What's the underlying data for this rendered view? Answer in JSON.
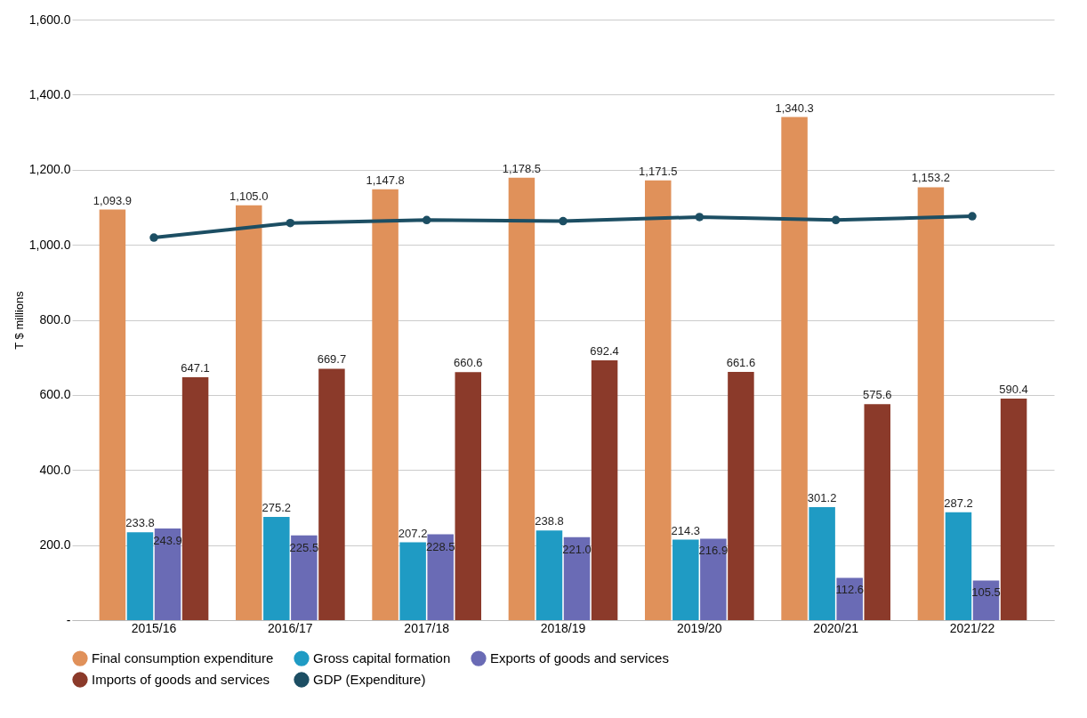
{
  "chart_data": {
    "type": "bar",
    "ylabel": "T $ millions",
    "categories": [
      "2015/16",
      "2016/17",
      "2017/18",
      "2018/19",
      "2019/20",
      "2020/21",
      "2021/22"
    ],
    "series": [
      {
        "name": "Final consumption expenditure",
        "color": "#e0915a",
        "values": [
          1093.9,
          1105.0,
          1147.8,
          1178.5,
          1171.5,
          1340.3,
          1153.2
        ],
        "value_labels": [
          "1,093.9",
          "1,105.0",
          "1,147.8",
          "1,178.5",
          "1,171.5",
          "1,340.3",
          "1,153.2"
        ]
      },
      {
        "name": "Gross capital formation",
        "color": "#1f9bc4",
        "values": [
          233.8,
          275.2,
          207.2,
          238.8,
          214.3,
          301.2,
          287.2
        ],
        "value_labels": [
          "233.8",
          "275.2",
          "207.2",
          "238.8",
          "214.3",
          "301.2",
          "287.2"
        ]
      },
      {
        "name": "Exports of goods and services",
        "color": "#6a6bb5",
        "values": [
          243.9,
          225.5,
          228.5,
          221.0,
          216.9,
          112.6,
          105.5
        ],
        "value_labels": [
          "243.9",
          "225.5",
          "228.5",
          "221.0",
          "216.9",
          "112.6",
          "105.5"
        ]
      },
      {
        "name": "Imports of goods and services",
        "color": "#8b3a2a",
        "values": [
          647.1,
          669.7,
          660.6,
          692.4,
          661.6,
          575.6,
          590.4
        ],
        "value_labels": [
          "647.1",
          "669.7",
          "660.6",
          "692.4",
          "661.6",
          "575.6",
          "590.4"
        ]
      },
      {
        "name": "GDP (Expenditure)",
        "type": "line",
        "color": "#1c4e63",
        "marker": "circle",
        "values": [
          1019,
          1058,
          1066,
          1063,
          1074,
          1066,
          1076
        ]
      }
    ],
    "ylim": [
      0,
      1600
    ],
    "yticks": [
      {
        "value": 0,
        "label": "-"
      },
      {
        "value": 200,
        "label": "200.0"
      },
      {
        "value": 400,
        "label": "400.0"
      },
      {
        "value": 600,
        "label": "600.0"
      },
      {
        "value": 800,
        "label": "800.0"
      },
      {
        "value": 1000,
        "label": "1,000.0"
      },
      {
        "value": 1200,
        "label": "1,200.0"
      },
      {
        "value": 1400,
        "label": "1,400.0"
      },
      {
        "value": 1600,
        "label": "1,600.0"
      }
    ],
    "grid": "y",
    "legend": "bottom"
  }
}
